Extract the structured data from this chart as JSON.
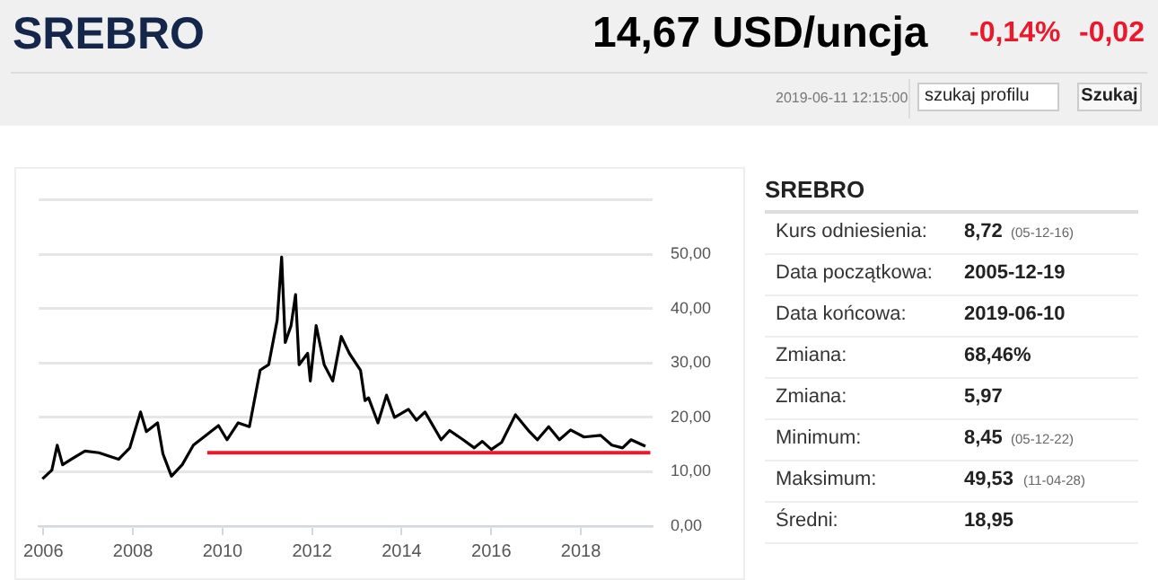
{
  "chart_data": {
    "type": "line",
    "title": "SREBRO",
    "annotations": [
      "14,67 USD/uncja",
      "-0,14%",
      "-0,02",
      "2019-06-11 12:15:00",
      "szukaj profilu",
      "Szukaj",
      "SREBRO",
      "Kurs odniesienia:",
      "8,72",
      "(05-12-16)",
      "Data początkowa:",
      "2005-12-19",
      "Data końcowa:",
      "2019-06-10",
      "Zmiana:",
      "68,46%",
      "Zmiana:",
      "5,97",
      "Minimum:",
      "8,45",
      "(05-12-22)",
      "Maksimum:",
      "49,53",
      "(11-04-28)",
      "Średni:",
      "18,95"
    ],
    "series": [
      {
        "color": "#000000",
        "x": [
          2005.98,
          2006.19,
          2006.31,
          2006.43,
          2006.62,
          2006.93,
          2007.24,
          2007.68,
          2007.93,
          2008.17,
          2008.3,
          2008.55,
          2008.67,
          2008.86,
          2009.1,
          2009.35,
          2009.66,
          2009.91,
          2010.1,
          2010.35,
          2010.6,
          2010.84,
          2011.03,
          2011.22,
          2011.32,
          2011.4,
          2011.53,
          2011.63,
          2011.71,
          2011.9,
          2011.96,
          2012.09,
          2012.27,
          2012.46,
          2012.65,
          2012.83,
          2013.08,
          2013.18,
          2013.26,
          2013.47,
          2013.66,
          2013.84,
          2014.15,
          2014.33,
          2014.52,
          2014.88,
          2015.07,
          2015.37,
          2015.62,
          2015.8,
          2016.0,
          2016.23,
          2016.54,
          2016.85,
          2017.03,
          2017.28,
          2017.52,
          2017.77,
          2018.07,
          2018.44,
          2018.69,
          2018.93,
          2019.12,
          2019.44
        ],
        "values": [
          8.7,
          10.3,
          14.9,
          11.3,
          12.3,
          13.8,
          13.5,
          12.3,
          14.4,
          21.0,
          17.4,
          19.0,
          13.3,
          9.2,
          11.3,
          14.9,
          16.9,
          18.5,
          15.9,
          19.0,
          18.3,
          28.7,
          29.7,
          37.9,
          49.5,
          33.8,
          36.9,
          42.6,
          29.7,
          31.8,
          26.7,
          36.9,
          29.7,
          26.7,
          34.9,
          31.8,
          28.7,
          23.1,
          23.6,
          19.0,
          24.1,
          20.0,
          21.5,
          19.5,
          21.0,
          15.9,
          17.6,
          15.9,
          14.4,
          15.6,
          14.1,
          15.4,
          20.5,
          17.4,
          15.9,
          18.3,
          15.9,
          17.7,
          16.4,
          16.7,
          14.9,
          14.4,
          15.9,
          14.7
        ]
      },
      {
        "type": "line",
        "color": "#e8192c",
        "x": [
          2009.66,
          2019.55
        ],
        "values": [
          13.5,
          13.5
        ]
      }
    ],
    "xlim": [
      2005.9,
      2019.6
    ],
    "xticks": [
      2006,
      2008,
      2010,
      2012,
      2014,
      2016,
      2018
    ],
    "ylim": [
      0,
      60
    ],
    "yticks": [
      {
        "value": 0,
        "label": "0,00"
      },
      {
        "value": 10,
        "label": "10,00"
      },
      {
        "value": 20,
        "label": "20,00"
      },
      {
        "value": 30,
        "label": "30,00"
      },
      {
        "value": 40,
        "label": "40,00"
      },
      {
        "value": 50,
        "label": "50,00"
      },
      {
        "value": 60,
        "label": null
      }
    ],
    "grid": "y",
    "legend": false,
    "marker": "none",
    "line_style": "solid"
  }
}
